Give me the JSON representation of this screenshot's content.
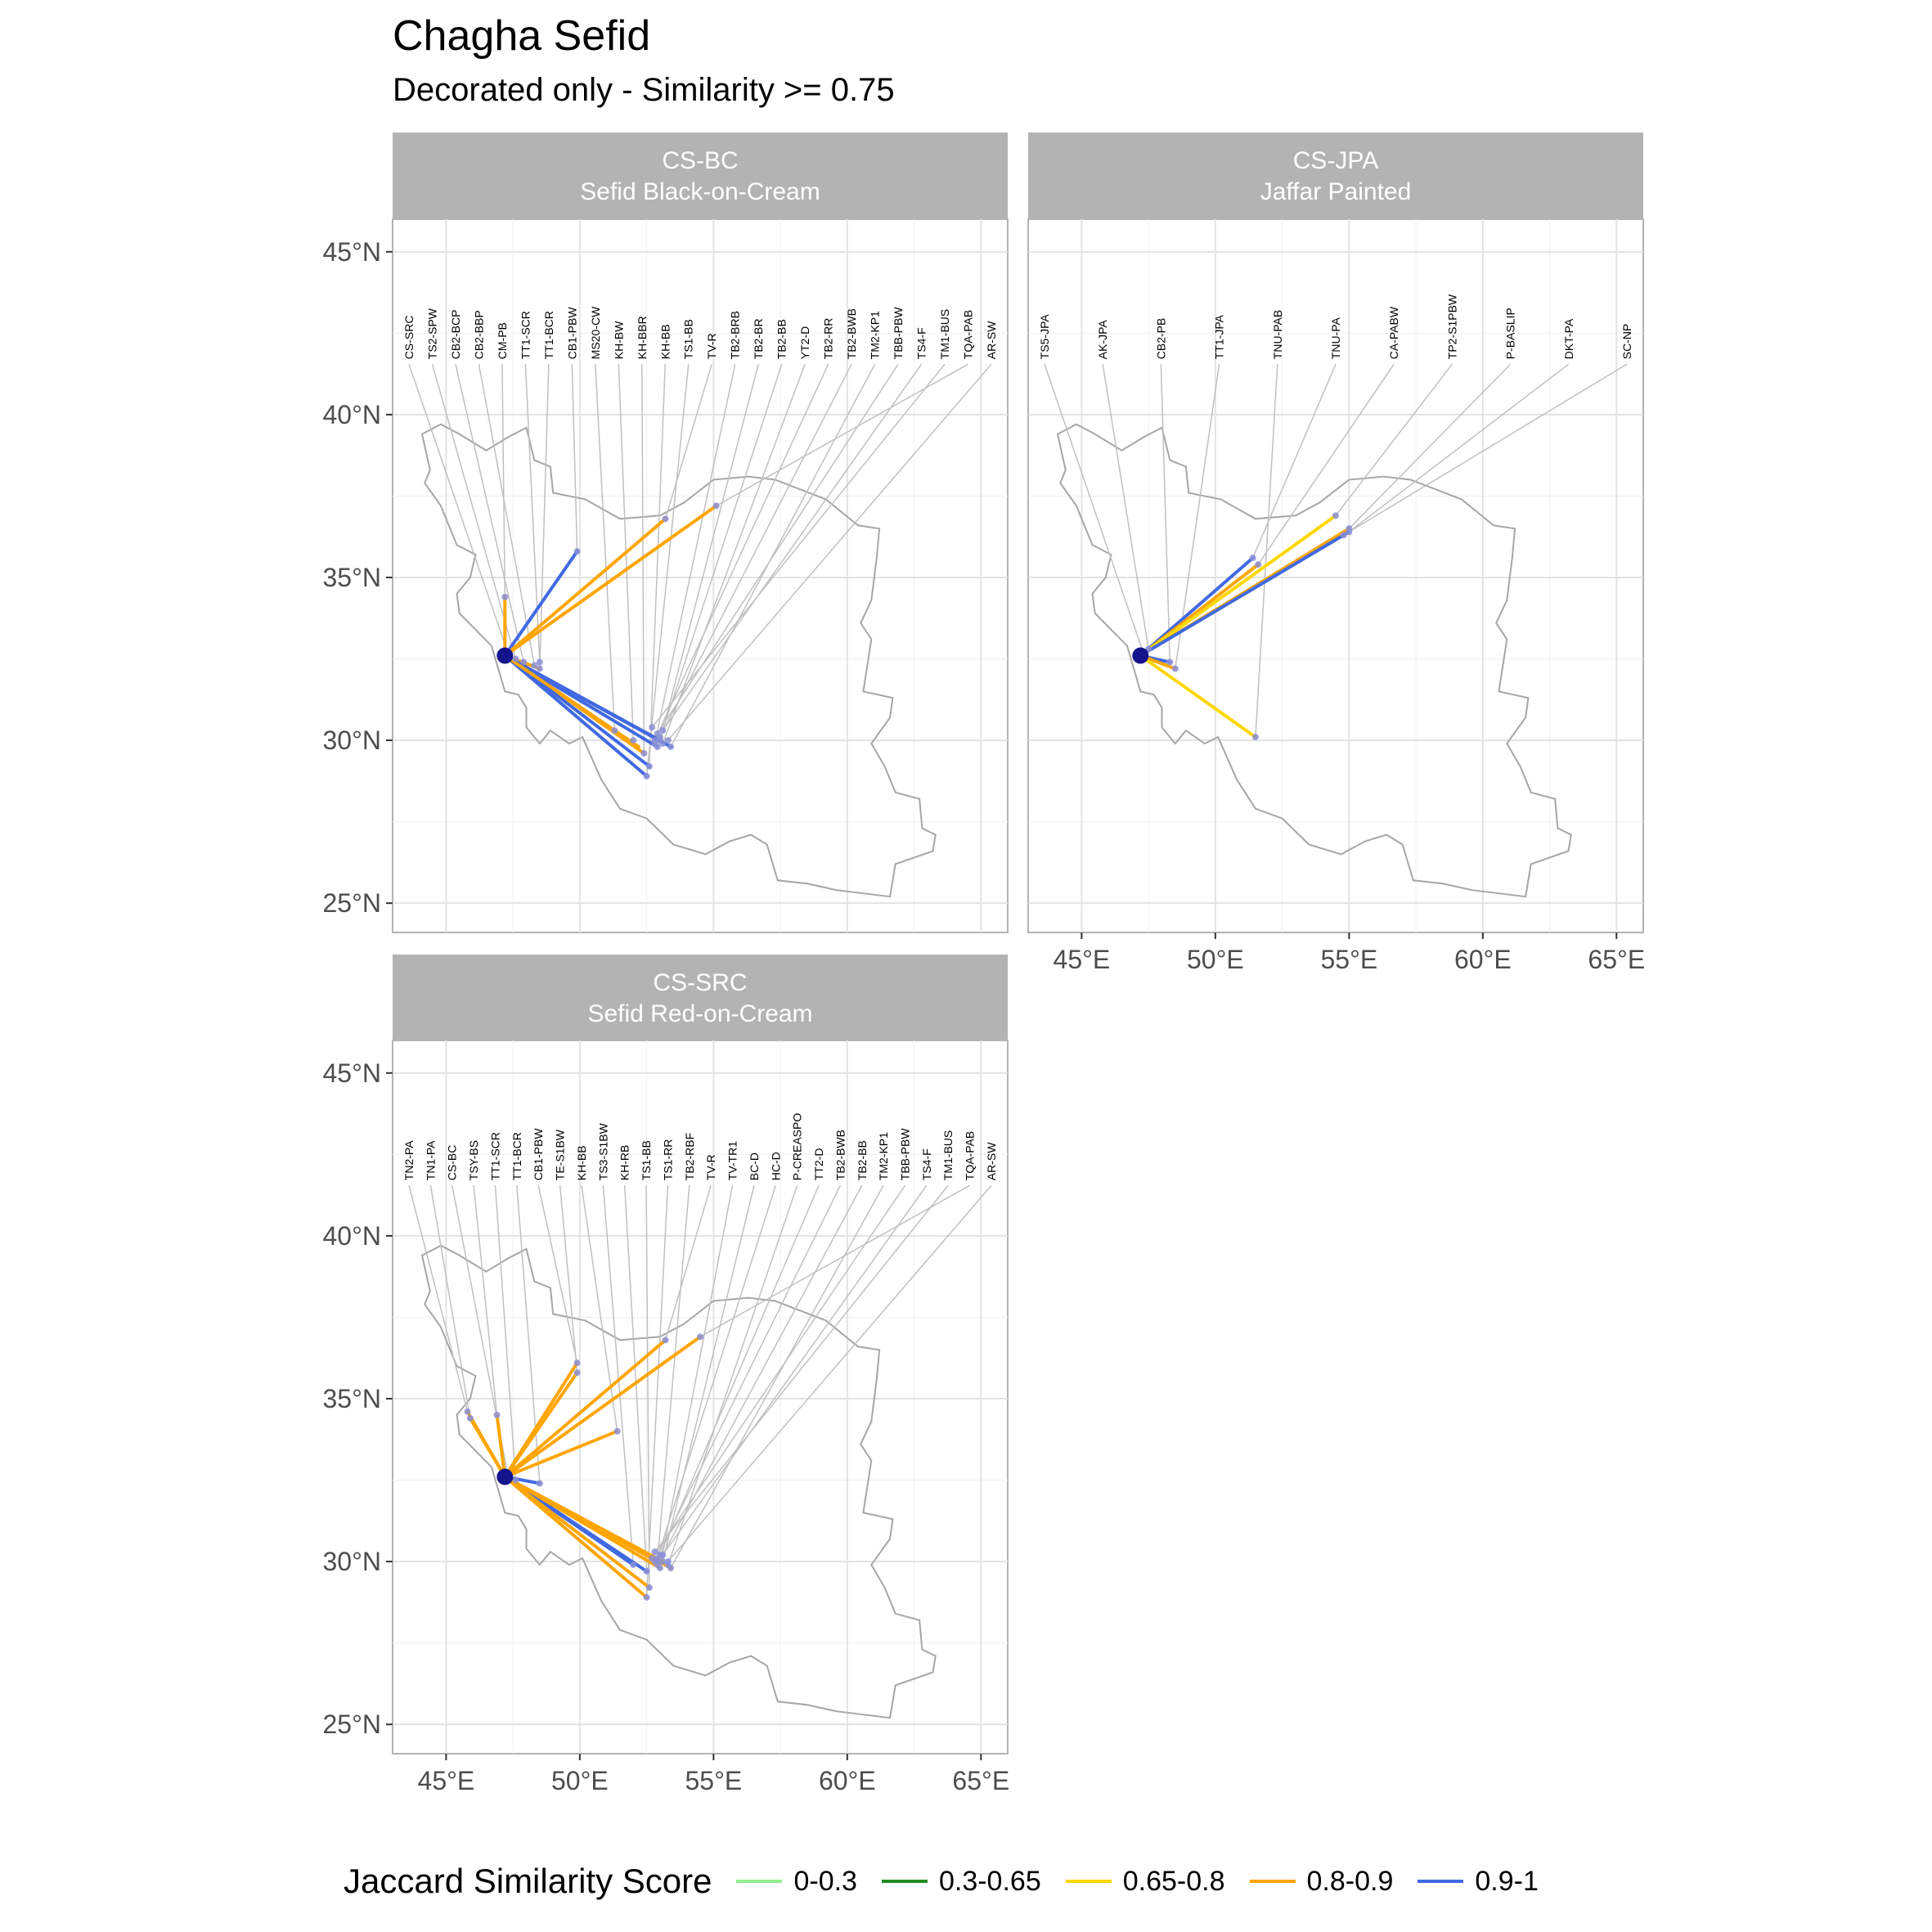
{
  "title": "Chagha Sefid",
  "subtitle": "Decorated only - Similarity >= 0.75",
  "axes": {
    "x_ticks": [
      "45°E",
      "50°E",
      "55°E",
      "60°E",
      "65°E"
    ],
    "y_ticks": [
      "45°N",
      "40°N",
      "35°N",
      "30°N",
      "25°N"
    ],
    "x_values": [
      45,
      50,
      55,
      60,
      65
    ],
    "y_values": [
      45,
      40,
      35,
      30,
      25
    ],
    "xlim": [
      43,
      66
    ],
    "ylim": [
      241,
      46
    ]
  },
  "legend": {
    "title": "Jaccard Similarity Score",
    "items": [
      {
        "label": "0-0.3",
        "color": "#90EE90"
      },
      {
        "label": "0.3-0.65",
        "color": "#228B22"
      },
      {
        "label": "0.65-0.8",
        "color": "#FFD700"
      },
      {
        "label": "0.8-0.9",
        "color": "#FFA500"
      },
      {
        "label": "0.9-1",
        "color": "#4169E1"
      }
    ]
  },
  "origin": {
    "lon": 47.2,
    "lat": 32.6
  },
  "chart_data": [
    {
      "type": "map",
      "header_line1": "CS-BC",
      "header_line2": "Sefid Black-on-Cream",
      "site_labels": [
        "CS-SRC",
        "TS2-SPW",
        "CB2-BCP",
        "CB2-BBP",
        "CM-PB",
        "TT1-SCR",
        "TT1-BCR",
        "CB1-PBW",
        "MS20-CW",
        "KH-BW",
        "KH-BBR",
        "KH-BB",
        "TS1-BB",
        "TV-R",
        "TB2-BRB",
        "TB2-BR",
        "TB2-BB",
        "YT2-D",
        "TB2-RR",
        "TB2-BWB",
        "TM2-KP1",
        "TBB-PBW",
        "TS4-F",
        "TM1-BUS",
        "TQA-PAB",
        "AR-SW"
      ],
      "sites": [
        {
          "lon": 47.3,
          "lat": 32.7
        },
        {
          "lon": 47.6,
          "lat": 32.5
        },
        {
          "lon": 47.9,
          "lat": 32.4
        },
        {
          "lon": 48.3,
          "lat": 32.3
        },
        {
          "lon": 47.2,
          "lat": 34.4
        },
        {
          "lon": 48.5,
          "lat": 32.4
        },
        {
          "lon": 48.5,
          "lat": 32.2
        },
        {
          "lon": 49.9,
          "lat": 35.8
        },
        {
          "lon": 51.3,
          "lat": 30.3
        },
        {
          "lon": 52.0,
          "lat": 30.0
        },
        {
          "lon": 52.4,
          "lat": 29.6
        },
        {
          "lon": 52.6,
          "lat": 29.2
        },
        {
          "lon": 52.5,
          "lat": 28.9
        },
        {
          "lon": 53.2,
          "lat": 36.8
        },
        {
          "lon": 52.8,
          "lat": 29.9
        },
        {
          "lon": 53.0,
          "lat": 30.0
        },
        {
          "lon": 52.9,
          "lat": 29.8
        },
        {
          "lon": 53.1,
          "lat": 29.9
        },
        {
          "lon": 52.8,
          "lat": 30.0
        },
        {
          "lon": 53.0,
          "lat": 30.1
        },
        {
          "lon": 53.4,
          "lat": 29.8
        },
        {
          "lon": 52.9,
          "lat": 30.2
        },
        {
          "lon": 53.1,
          "lat": 30.3
        },
        {
          "lon": 52.7,
          "lat": 30.4
        },
        {
          "lon": 55.1,
          "lat": 37.2
        },
        {
          "lon": 53.3,
          "lat": 30.0
        }
      ],
      "links": [
        {
          "lon": 47.2,
          "lat": 34.4,
          "score": "0.8-0.9"
        },
        {
          "lon": 49.9,
          "lat": 35.8,
          "score": "0.9-1"
        },
        {
          "lon": 53.2,
          "lat": 36.8,
          "score": "0.8-0.9"
        },
        {
          "lon": 55.1,
          "lat": 37.2,
          "score": "0.8-0.9"
        },
        {
          "lon": 48.5,
          "lat": 32.2,
          "score": "0.8-0.9"
        },
        {
          "lon": 51.3,
          "lat": 30.3,
          "score": "0.9-1"
        },
        {
          "lon": 52.4,
          "lat": 29.6,
          "score": "0.8-0.9"
        },
        {
          "lon": 52.6,
          "lat": 29.2,
          "score": "0.9-1"
        },
        {
          "lon": 52.5,
          "lat": 28.9,
          "score": "0.9-1"
        },
        {
          "lon": 52.9,
          "lat": 29.8,
          "score": "0.9-1"
        },
        {
          "lon": 53.0,
          "lat": 30.0,
          "score": "0.9-1"
        },
        {
          "lon": 53.4,
          "lat": 29.8,
          "score": "0.9-1"
        },
        {
          "lon": 52.2,
          "lat": 29.8,
          "score": "0.8-0.9"
        }
      ]
    },
    {
      "type": "map",
      "header_line1": "CS-JPA",
      "header_line2": "Jaffar Painted",
      "site_labels": [
        "TS5-JPA",
        "AK-JPA",
        "CB2-PB",
        "TT1-JPA",
        "TNU-PAB",
        "TNU-PA",
        "CA-PABW",
        "TP2-S1PBW",
        "P-BASLIP",
        "DKT-PA",
        "SC-NP"
      ],
      "sites": [
        {
          "lon": 47.3,
          "lat": 32.7
        },
        {
          "lon": 47.5,
          "lat": 32.8
        },
        {
          "lon": 48.3,
          "lat": 32.4
        },
        {
          "lon": 48.5,
          "lat": 32.2
        },
        {
          "lon": 51.5,
          "lat": 30.1
        },
        {
          "lon": 51.4,
          "lat": 35.6
        },
        {
          "lon": 51.6,
          "lat": 35.4
        },
        {
          "lon": 54.5,
          "lat": 36.9
        },
        {
          "lon": 55.0,
          "lat": 36.5
        },
        {
          "lon": 55.0,
          "lat": 36.4
        },
        {
          "lon": 54.8,
          "lat": 36.3
        }
      ],
      "links": [
        {
          "lon": 48.3,
          "lat": 32.4,
          "score": "0.9-1"
        },
        {
          "lon": 48.5,
          "lat": 32.2,
          "score": "0.8-0.9"
        },
        {
          "lon": 51.5,
          "lat": 30.1,
          "score": "0.65-0.8"
        },
        {
          "lon": 51.4,
          "lat": 35.6,
          "score": "0.9-1"
        },
        {
          "lon": 51.6,
          "lat": 35.4,
          "score": "0.8-0.9"
        },
        {
          "lon": 54.5,
          "lat": 36.9,
          "score": "0.65-0.8"
        },
        {
          "lon": 55.0,
          "lat": 36.5,
          "score": "0.8-0.9"
        },
        {
          "lon": 55.0,
          "lat": 36.4,
          "score": "0.9-1"
        }
      ]
    },
    {
      "type": "map",
      "header_line1": "CS-SRC",
      "header_line2": "Sefid Red-on-Cream",
      "site_labels": [
        "TN2-PA",
        "TN1-PA",
        "CS-BC",
        "TSY-BS",
        "TT1-SCR",
        "TT1-BCR",
        "CB1-PBW",
        "TE-S1BW",
        "KH-BB",
        "TS3-S1BW",
        "KH-RB",
        "TS1-BB",
        "TS1-RR",
        "TB2-RBF",
        "TV-R",
        "TV-TR1",
        "BC-D",
        "HC-D",
        "P-CREASPO",
        "TT2-D",
        "TB2-BWB",
        "TB2-BB",
        "TM2-KP1",
        "TBB-PBW",
        "TS4-F",
        "TM1-BUS",
        "TQA-PAB",
        "AR-SW"
      ],
      "sites": [
        {
          "lon": 45.8,
          "lat": 34.6
        },
        {
          "lon": 45.9,
          "lat": 34.4
        },
        {
          "lon": 47.3,
          "lat": 32.7
        },
        {
          "lon": 46.9,
          "lat": 34.5
        },
        {
          "lon": 47.6,
          "lat": 32.5
        },
        {
          "lon": 48.5,
          "lat": 32.4
        },
        {
          "lon": 49.9,
          "lat": 36.1
        },
        {
          "lon": 49.9,
          "lat": 35.8
        },
        {
          "lon": 51.4,
          "lat": 34.0
        },
        {
          "lon": 52.0,
          "lat": 29.9
        },
        {
          "lon": 52.5,
          "lat": 29.7
        },
        {
          "lon": 52.6,
          "lat": 29.2
        },
        {
          "lon": 52.5,
          "lat": 28.9
        },
        {
          "lon": 52.9,
          "lat": 30.0
        },
        {
          "lon": 53.2,
          "lat": 36.8
        },
        {
          "lon": 53.0,
          "lat": 29.8
        },
        {
          "lon": 53.1,
          "lat": 30.0
        },
        {
          "lon": 52.9,
          "lat": 30.1
        },
        {
          "lon": 53.3,
          "lat": 29.9
        },
        {
          "lon": 53.0,
          "lat": 30.2
        },
        {
          "lon": 52.8,
          "lat": 30.0
        },
        {
          "lon": 52.9,
          "lat": 29.9
        },
        {
          "lon": 53.4,
          "lat": 29.8
        },
        {
          "lon": 52.7,
          "lat": 30.1
        },
        {
          "lon": 53.1,
          "lat": 30.2
        },
        {
          "lon": 52.8,
          "lat": 30.3
        },
        {
          "lon": 54.5,
          "lat": 36.9
        },
        {
          "lon": 53.3,
          "lat": 30.0
        }
      ],
      "links": [
        {
          "lon": 45.8,
          "lat": 34.6,
          "score": "0.8-0.9"
        },
        {
          "lon": 45.9,
          "lat": 34.4,
          "score": "0.8-0.9"
        },
        {
          "lon": 46.9,
          "lat": 34.5,
          "score": "0.8-0.9"
        },
        {
          "lon": 48.5,
          "lat": 32.4,
          "score": "0.9-1"
        },
        {
          "lon": 49.9,
          "lat": 36.1,
          "score": "0.8-0.9"
        },
        {
          "lon": 49.9,
          "lat": 35.8,
          "score": "0.8-0.9"
        },
        {
          "lon": 51.4,
          "lat": 34.0,
          "score": "0.8-0.9"
        },
        {
          "lon": 53.2,
          "lat": 36.8,
          "score": "0.8-0.9"
        },
        {
          "lon": 54.5,
          "lat": 36.9,
          "score": "0.8-0.9"
        },
        {
          "lon": 52.5,
          "lat": 29.7,
          "score": "0.9-1"
        },
        {
          "lon": 52.0,
          "lat": 29.9,
          "score": "0.9-1"
        },
        {
          "lon": 52.6,
          "lat": 29.2,
          "score": "0.8-0.9"
        },
        {
          "lon": 52.5,
          "lat": 28.9,
          "score": "0.8-0.9"
        },
        {
          "lon": 53.0,
          "lat": 29.8,
          "score": "0.8-0.9"
        },
        {
          "lon": 53.1,
          "lat": 30.0,
          "score": "0.8-0.9"
        },
        {
          "lon": 53.4,
          "lat": 29.8,
          "score": "0.8-0.9"
        },
        {
          "lon": 52.9,
          "lat": 30.0,
          "score": "0.8-0.9"
        }
      ]
    }
  ]
}
